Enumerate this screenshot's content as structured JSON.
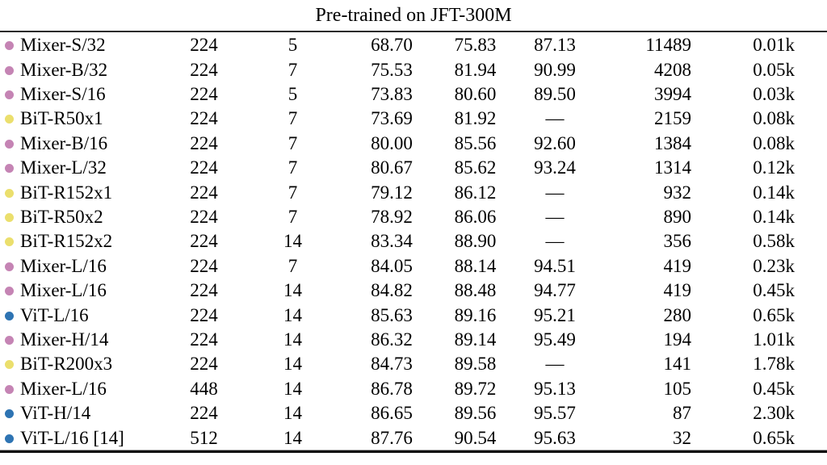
{
  "title": "Pre-trained on JFT-300M",
  "bullet_colors": {
    "mixer": "#c584b4",
    "bit": "#ebdf6d",
    "vit": "#2e74b3"
  },
  "rows": [
    {
      "model": "Mixer-S/32",
      "family": "mixer",
      "resolution": "224",
      "epochs": "5",
      "top1": "68.70",
      "real": "75.83",
      "avg5": "87.13",
      "throughput": "11489",
      "core_days": "0.01k"
    },
    {
      "model": "Mixer-B/32",
      "family": "mixer",
      "resolution": "224",
      "epochs": "7",
      "top1": "75.53",
      "real": "81.94",
      "avg5": "90.99",
      "throughput": "4208",
      "core_days": "0.05k"
    },
    {
      "model": "Mixer-S/16",
      "family": "mixer",
      "resolution": "224",
      "epochs": "5",
      "top1": "73.83",
      "real": "80.60",
      "avg5": "89.50",
      "throughput": "3994",
      "core_days": "0.03k"
    },
    {
      "model": "BiT-R50x1",
      "family": "bit",
      "resolution": "224",
      "epochs": "7",
      "top1": "73.69",
      "real": "81.92",
      "avg5": "—",
      "throughput": "2159",
      "core_days": "0.08k"
    },
    {
      "model": "Mixer-B/16",
      "family": "mixer",
      "resolution": "224",
      "epochs": "7",
      "top1": "80.00",
      "real": "85.56",
      "avg5": "92.60",
      "throughput": "1384",
      "core_days": "0.08k"
    },
    {
      "model": "Mixer-L/32",
      "family": "mixer",
      "resolution": "224",
      "epochs": "7",
      "top1": "80.67",
      "real": "85.62",
      "avg5": "93.24",
      "throughput": "1314",
      "core_days": "0.12k"
    },
    {
      "model": "BiT-R152x1",
      "family": "bit",
      "resolution": "224",
      "epochs": "7",
      "top1": "79.12",
      "real": "86.12",
      "avg5": "—",
      "throughput": "932",
      "core_days": "0.14k"
    },
    {
      "model": "BiT-R50x2",
      "family": "bit",
      "resolution": "224",
      "epochs": "7",
      "top1": "78.92",
      "real": "86.06",
      "avg5": "—",
      "throughput": "890",
      "core_days": "0.14k"
    },
    {
      "model": "BiT-R152x2",
      "family": "bit",
      "resolution": "224",
      "epochs": "14",
      "top1": "83.34",
      "real": "88.90",
      "avg5": "—",
      "throughput": "356",
      "core_days": "0.58k"
    },
    {
      "model": "Mixer-L/16",
      "family": "mixer",
      "resolution": "224",
      "epochs": "7",
      "top1": "84.05",
      "real": "88.14",
      "avg5": "94.51",
      "throughput": "419",
      "core_days": "0.23k"
    },
    {
      "model": "Mixer-L/16",
      "family": "mixer",
      "resolution": "224",
      "epochs": "14",
      "top1": "84.82",
      "real": "88.48",
      "avg5": "94.77",
      "throughput": "419",
      "core_days": "0.45k"
    },
    {
      "model": "ViT-L/16",
      "family": "vit",
      "resolution": "224",
      "epochs": "14",
      "top1": "85.63",
      "real": "89.16",
      "avg5": "95.21",
      "throughput": "280",
      "core_days": "0.65k"
    },
    {
      "model": "Mixer-H/14",
      "family": "mixer",
      "resolution": "224",
      "epochs": "14",
      "top1": "86.32",
      "real": "89.14",
      "avg5": "95.49",
      "throughput": "194",
      "core_days": "1.01k"
    },
    {
      "model": "BiT-R200x3",
      "family": "bit",
      "resolution": "224",
      "epochs": "14",
      "top1": "84.73",
      "real": "89.58",
      "avg5": "—",
      "throughput": "141",
      "core_days": "1.78k"
    },
    {
      "model": "Mixer-L/16",
      "family": "mixer",
      "resolution": "448",
      "epochs": "14",
      "top1": "86.78",
      "real": "89.72",
      "avg5": "95.13",
      "throughput": "105",
      "core_days": "0.45k"
    },
    {
      "model": "ViT-H/14",
      "family": "vit",
      "resolution": "224",
      "epochs": "14",
      "top1": "86.65",
      "real": "89.56",
      "avg5": "95.57",
      "throughput": "87",
      "core_days": "2.30k"
    },
    {
      "model": "ViT-L/16 [14]",
      "family": "vit",
      "resolution": "512",
      "epochs": "14",
      "top1": "87.76",
      "real": "90.54",
      "avg5": "95.63",
      "throughput": "32",
      "core_days": "0.65k"
    }
  ]
}
